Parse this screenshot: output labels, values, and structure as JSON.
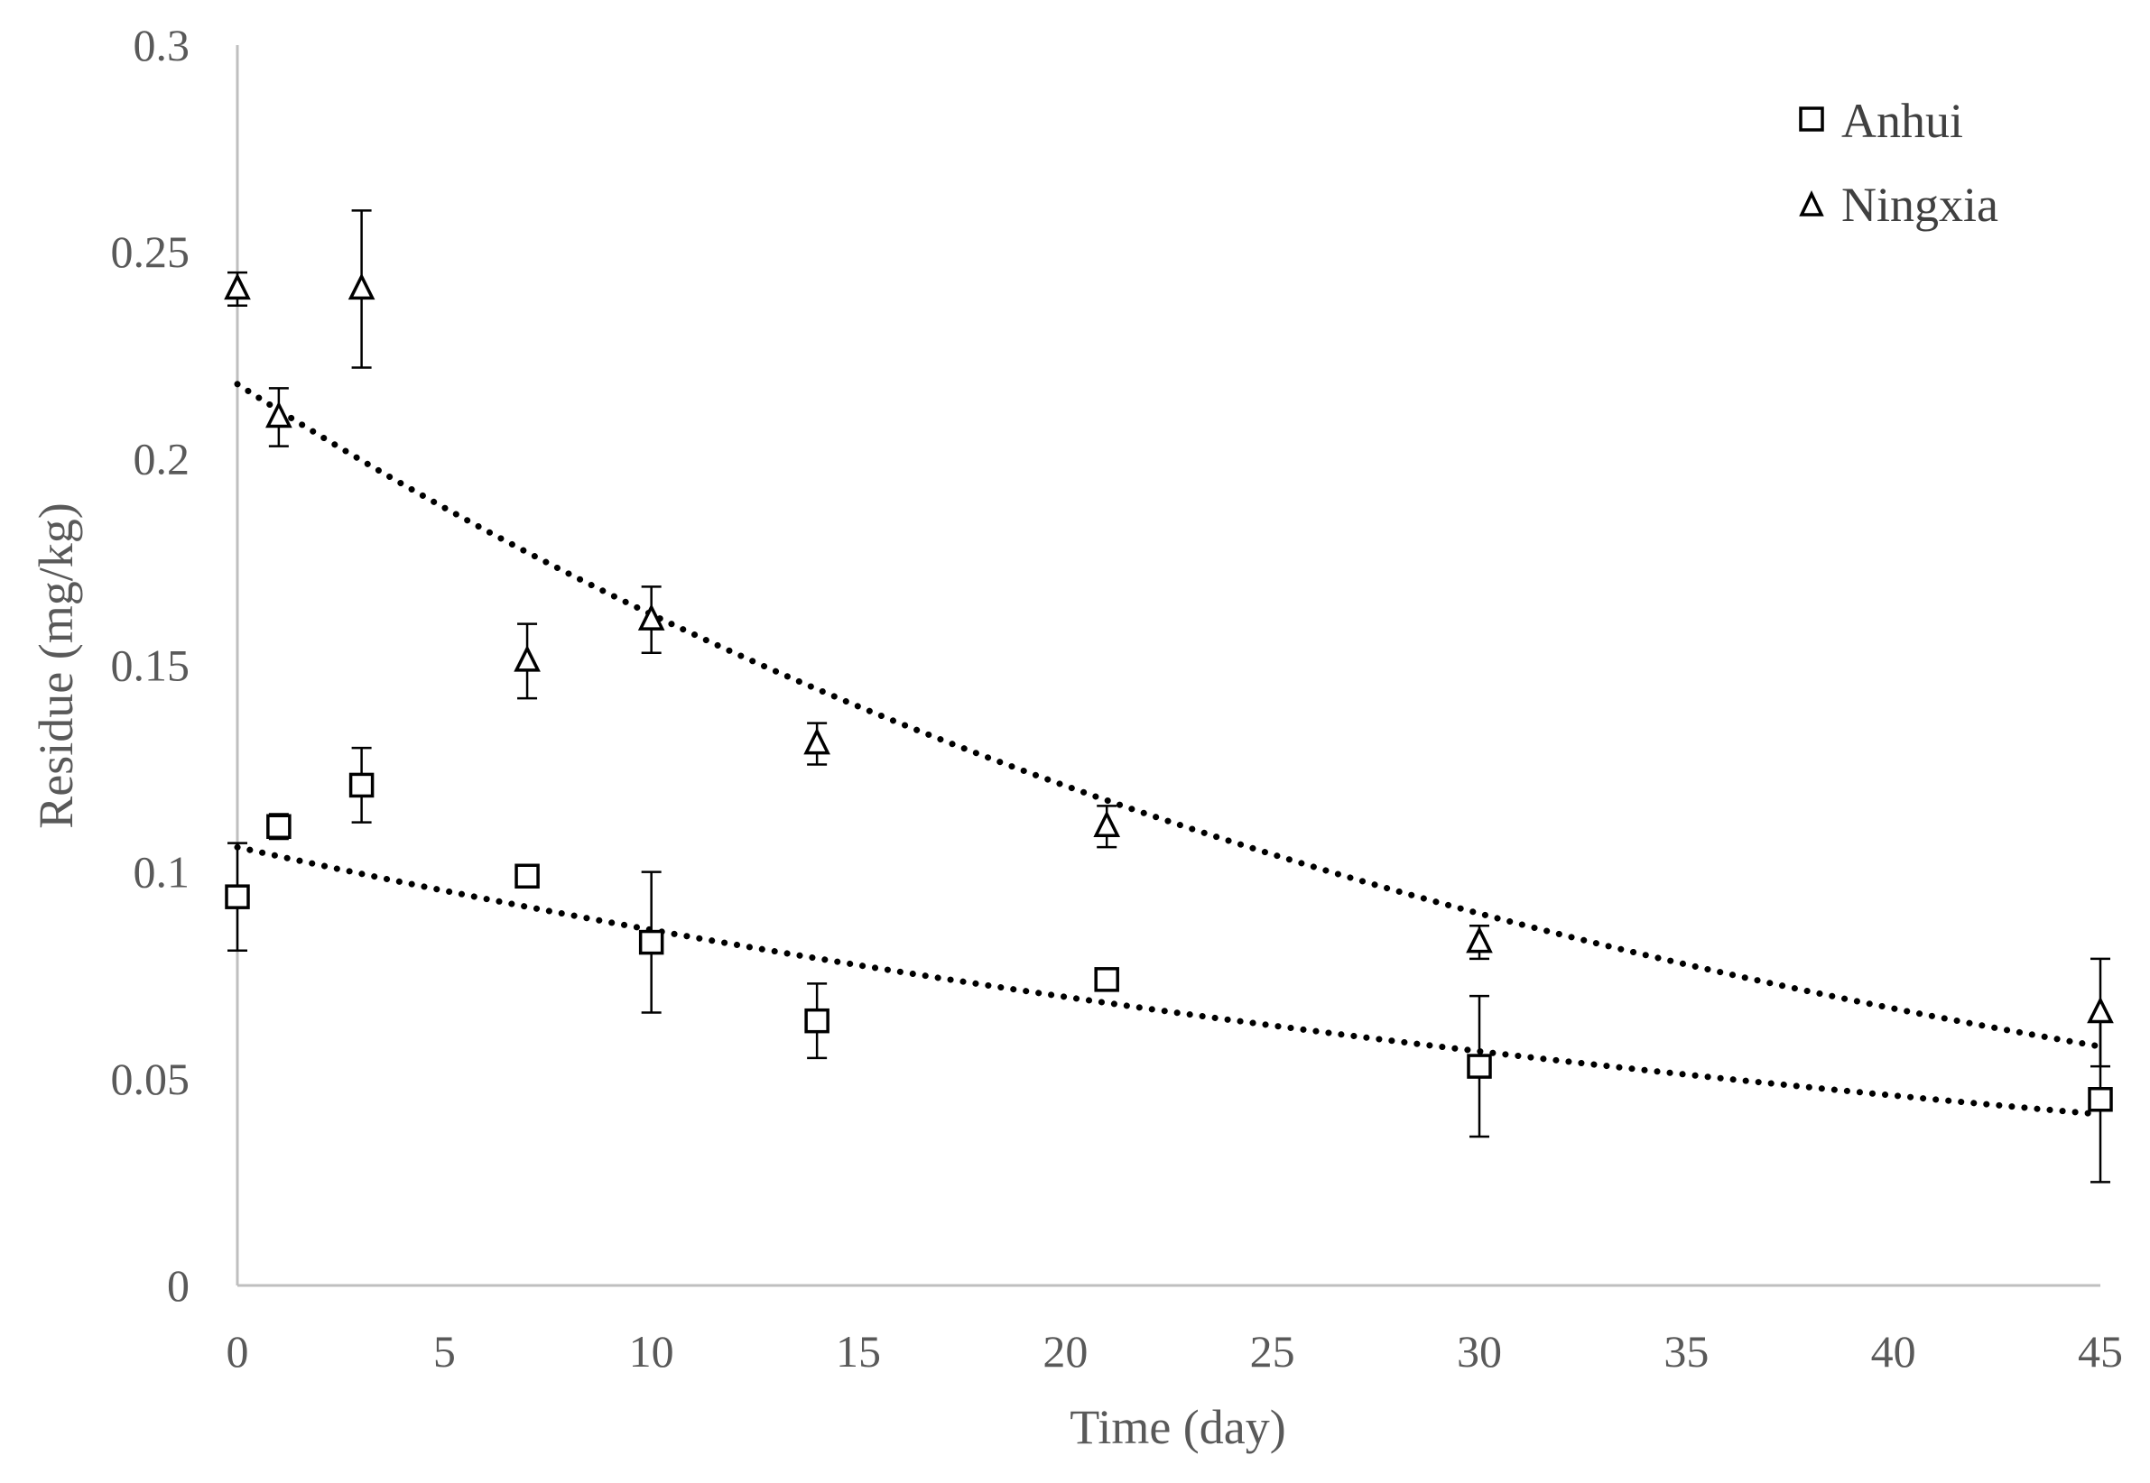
{
  "chart_data": {
    "type": "scatter",
    "title": "",
    "xlabel": "Time (day)",
    "ylabel": "Residue (mg/kg)",
    "xlim": [
      0,
      45
    ],
    "ylim": [
      0,
      0.3
    ],
    "x_ticks": [
      "0",
      "5",
      "10",
      "15",
      "20",
      "25",
      "30",
      "35",
      "40",
      "45"
    ],
    "y_ticks": [
      "0",
      "0.05",
      "0.1",
      "0.15",
      "0.2",
      "0.25",
      "0.3"
    ],
    "grid": false,
    "legend_position": "top-right",
    "series": [
      {
        "name": "Anhui",
        "marker": "square",
        "x": [
          0,
          1,
          3,
          7,
          10,
          14,
          21,
          30,
          45
        ],
        "y": [
          0.094,
          0.111,
          0.121,
          0.099,
          0.083,
          0.064,
          0.074,
          0.053,
          0.045
        ],
        "error": [
          0.013,
          0.003,
          0.009,
          0.002,
          0.017,
          0.009,
          0.002,
          0.017,
          0.02
        ],
        "trendline": {
          "type": "exponential",
          "a": 0.106,
          "k": 0.0209
        }
      },
      {
        "name": "Ningxia",
        "marker": "triangle",
        "x": [
          0,
          1,
          3,
          7,
          10,
          14,
          21,
          30,
          45
        ],
        "y": [
          0.241,
          0.21,
          0.241,
          0.151,
          0.161,
          0.131,
          0.111,
          0.083,
          0.066
        ],
        "error": [
          0.004,
          0.007,
          0.019,
          0.009,
          0.008,
          0.005,
          0.005,
          0.004,
          0.013
        ],
        "trendline": {
          "type": "exponential",
          "a": 0.218,
          "k": 0.0295
        }
      }
    ]
  }
}
